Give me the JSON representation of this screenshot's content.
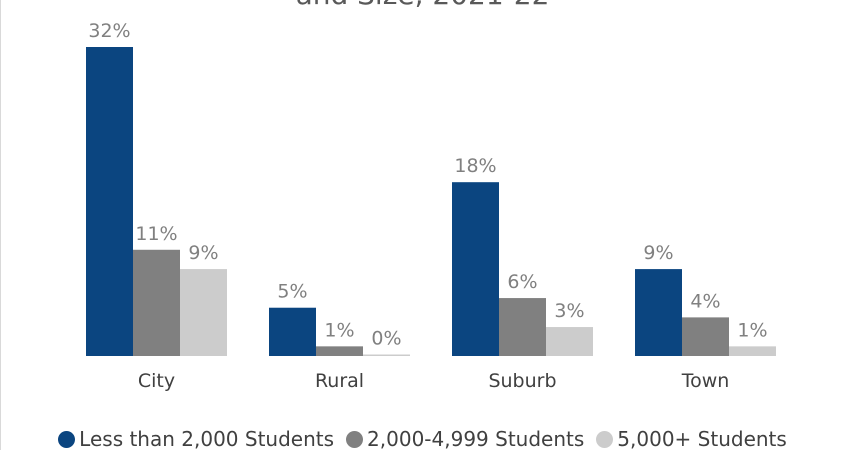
{
  "chart_data": {
    "type": "bar",
    "title": "and Size, 2021-22",
    "categories": [
      "City",
      "Rural",
      "Suburb",
      "Town"
    ],
    "series": [
      {
        "name": "Less than 2,000 Students",
        "color": "#0b4580",
        "values": [
          32,
          5,
          18,
          9
        ]
      },
      {
        "name": "2,000-4,999 Students",
        "color": "#808080",
        "values": [
          11,
          1,
          6,
          4
        ]
      },
      {
        "name": "5,000+ Students",
        "color": "#cccccc",
        "values": [
          9,
          0,
          3,
          1
        ]
      }
    ],
    "value_format": "percent",
    "ylim": [
      0,
      32
    ],
    "grid": false,
    "legend_position": "bottom"
  }
}
